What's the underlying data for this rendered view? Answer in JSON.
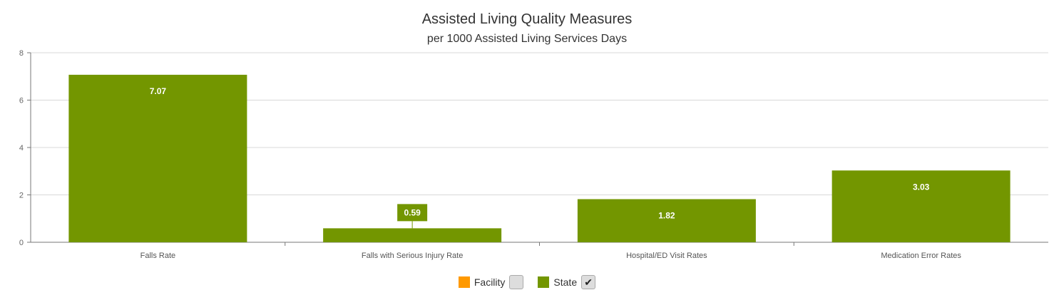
{
  "chart_data": {
    "type": "bar",
    "title": "Assisted Living Quality Measures",
    "subtitle": "per 1000 Assisted Living Services Days",
    "categories": [
      "Falls Rate",
      "Falls with Serious Injury Rate",
      "Hospital/ED Visit Rates",
      "Medication Error Rates"
    ],
    "series": [
      {
        "name": "State",
        "values": [
          7.07,
          0.59,
          1.82,
          3.03
        ],
        "color": "#739600"
      }
    ],
    "data_labels": [
      "7.07",
      "0.59",
      "1.82",
      "3.03"
    ],
    "ylim": [
      0,
      8
    ],
    "yticks": [
      0,
      2,
      4,
      6,
      8
    ],
    "grid": true,
    "legend_position": "bottom"
  },
  "legend": [
    {
      "label": "Facility",
      "color": "#ff9900",
      "checked": false
    },
    {
      "label": "State",
      "color": "#739600",
      "checked": true
    }
  ],
  "check_glyph": "✔"
}
